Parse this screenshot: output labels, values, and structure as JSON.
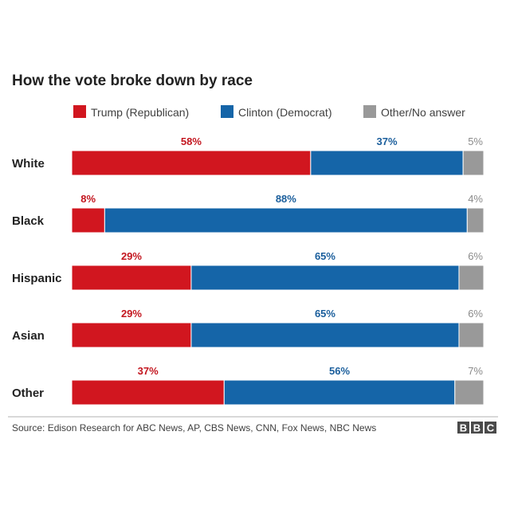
{
  "chart_data": {
    "type": "bar",
    "orientation": "horizontal",
    "stacked": true,
    "percent": true,
    "title": "How the vote broke down by race",
    "categories": [
      "White",
      "Black",
      "Hispanic",
      "Asian",
      "Other"
    ],
    "series": [
      {
        "name": "Trump (Republican)",
        "color": "#d1161f",
        "values": [
          58,
          8,
          29,
          29,
          37
        ]
      },
      {
        "name": "Clinton (Democrat)",
        "color": "#1565a8",
        "values": [
          37,
          88,
          65,
          65,
          56
        ]
      },
      {
        "name": "Other/No answer",
        "color": "#999999",
        "values": [
          5,
          4,
          6,
          6,
          7
        ]
      }
    ],
    "label_colors": [
      "#c3161f",
      "#1a5e9c",
      "#8a8a8a"
    ],
    "legend_position": "top"
  },
  "source": "Source: Edison Research for ABC News, AP, CBS News, CNN, Fox News, NBC News",
  "logo": {
    "letters": [
      "B",
      "B",
      "C"
    ],
    "color": "#4a4a4a"
  }
}
